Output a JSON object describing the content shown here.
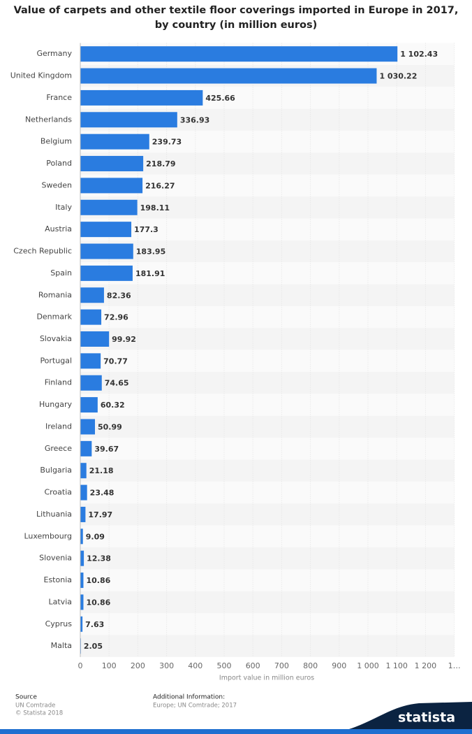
{
  "chart_data": {
    "type": "hbar",
    "title": [
      "Value of carpets and other textile floor coverings imported in Europe in 2017,",
      "by country (in million euros)"
    ],
    "x_label": "Import value in million euros",
    "categories": [
      "Germany",
      "United Kingdom",
      "France",
      "Netherlands",
      "Belgium",
      "Poland",
      "Sweden",
      "Italy",
      "Austria",
      "Czech Republic",
      "Spain",
      "Romania",
      "Denmark",
      "Slovakia",
      "Portugal",
      "Finland",
      "Hungary",
      "Ireland",
      "Greece",
      "Bulgaria",
      "Croatia",
      "Lithuania",
      "Luxembourg",
      "Slovenia",
      "Estonia",
      "Latvia",
      "Cyprus",
      "Malta"
    ],
    "values": [
      1102.43,
      1030.22,
      425.66,
      336.93,
      239.73,
      218.79,
      216.27,
      198.11,
      177.3,
      183.95,
      181.91,
      82.36,
      72.96,
      99.92,
      70.77,
      74.65,
      60.32,
      50.99,
      39.67,
      21.18,
      23.48,
      17.97,
      9.09,
      12.38,
      10.86,
      10.86,
      7.63,
      2.05
    ],
    "value_labels": [
      "1 102.43",
      "1 030.22",
      "425.66",
      "336.93",
      "239.73",
      "218.79",
      "216.27",
      "198.11",
      "177.3",
      "183.95",
      "181.91",
      "82.36",
      "72.96",
      "99.92",
      "70.77",
      "74.65",
      "60.32",
      "50.99",
      "39.67",
      "21.18",
      "23.48",
      "17.97",
      "9.09",
      "12.38",
      "10.86",
      "10.86",
      "7.63",
      "2.05"
    ],
    "color": "#2a7ce0",
    "xlim": [
      0,
      1300
    ],
    "xticks": [
      0,
      100,
      200,
      300,
      400,
      500,
      600,
      700,
      800,
      900,
      {
        "value": 1000,
        "label": "1 000"
      },
      {
        "value": 1100,
        "label": "1 100"
      },
      {
        "value": 1200,
        "label": "1 200"
      },
      {
        "value": 1300,
        "label": "1…"
      }
    ],
    "grid": true,
    "source_label": "Source",
    "source": "UN Comtrade",
    "copyright": "© Statista 2018",
    "additional_info_label": "Additional Information:",
    "additional_info": "Europe; UN Comtrade; 2017",
    "brand": "statista"
  }
}
